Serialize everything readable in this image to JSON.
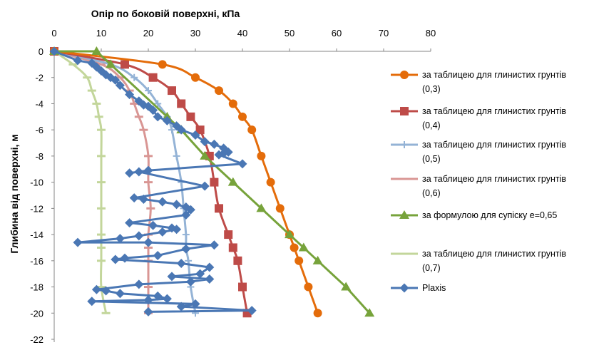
{
  "chart_data": {
    "type": "line",
    "title": "Опір по боковій поверхні, кПа",
    "xlabel": "Опір по боковій поверхні, кПа",
    "ylabel": "Глибина від поверхні, м",
    "xlim": [
      0,
      80
    ],
    "ylim": [
      -22,
      0
    ],
    "x_ticks": [
      "0",
      "10",
      "20",
      "30",
      "40",
      "50",
      "60",
      "70",
      "80"
    ],
    "y_ticks": [
      "0",
      "-2",
      "-4",
      "-6",
      "-8",
      "-10",
      "-12",
      "-14",
      "-16",
      "-18",
      "-20",
      "-22"
    ],
    "x_axis_position": "top",
    "grid": false,
    "legend_position": "right",
    "series": [
      {
        "name": "за таблицею для глинистих грунтів (0,3)",
        "color": "#E46C0A",
        "marker": "circle",
        "points": [
          [
            0,
            0
          ],
          [
            23,
            -1
          ],
          [
            30,
            -2
          ],
          [
            35,
            -3
          ],
          [
            38,
            -4
          ],
          [
            40,
            -5
          ],
          [
            42,
            -6
          ],
          [
            44,
            -8
          ],
          [
            46,
            -10
          ],
          [
            48,
            -12
          ],
          [
            50,
            -14
          ],
          [
            51,
            -15
          ],
          [
            52,
            -16
          ],
          [
            54,
            -18
          ],
          [
            56,
            -20
          ]
        ]
      },
      {
        "name": "за таблицею для глинистих грунтів (0,4)",
        "color": "#BE4B48",
        "marker": "square",
        "points": [
          [
            0,
            0
          ],
          [
            15,
            -1
          ],
          [
            21,
            -2
          ],
          [
            25,
            -3
          ],
          [
            27,
            -4
          ],
          [
            29,
            -5
          ],
          [
            31,
            -6
          ],
          [
            33,
            -8
          ],
          [
            34,
            -10
          ],
          [
            35,
            -12
          ],
          [
            37,
            -14
          ],
          [
            38,
            -15
          ],
          [
            39,
            -16
          ],
          [
            40,
            -18
          ],
          [
            41,
            -20
          ]
        ]
      },
      {
        "name": "за таблицею для глинистих грунтів (0,5)",
        "color": "#94B3D6",
        "marker": "plus",
        "points": [
          [
            0,
            0
          ],
          [
            12,
            -1
          ],
          [
            17,
            -2
          ],
          [
            20,
            -3
          ],
          [
            22,
            -4
          ],
          [
            24,
            -5
          ],
          [
            25,
            -6
          ],
          [
            26,
            -8
          ],
          [
            27,
            -10
          ],
          [
            27.5,
            -12
          ],
          [
            28,
            -14
          ],
          [
            28,
            -15
          ],
          [
            28.5,
            -16
          ],
          [
            29,
            -18
          ],
          [
            30,
            -20
          ]
        ]
      },
      {
        "name": "за таблицею для глинистих грунтів (0,6)",
        "color": "#D99694",
        "marker": "dash",
        "points": [
          [
            0,
            0
          ],
          [
            10,
            -1
          ],
          [
            14,
            -2
          ],
          [
            16,
            -3
          ],
          [
            17,
            -4
          ],
          [
            18,
            -5
          ],
          [
            19,
            -6
          ],
          [
            20,
            -8
          ],
          [
            20,
            -10
          ],
          [
            20.5,
            -12
          ],
          [
            20,
            -14
          ],
          [
            20,
            -15
          ],
          [
            20,
            -16
          ],
          [
            20,
            -18
          ],
          [
            20,
            -20
          ]
        ]
      },
      {
        "name": "за формулою для супіску e=0,65",
        "color": "#77A33B",
        "marker": "triangle",
        "points": [
          [
            0,
            0
          ],
          [
            9,
            0
          ],
          [
            12,
            -1
          ],
          [
            24,
            -5
          ],
          [
            27,
            -6
          ],
          [
            32,
            -8
          ],
          [
            38,
            -10
          ],
          [
            44,
            -12
          ],
          [
            50,
            -14
          ],
          [
            53,
            -15
          ],
          [
            56,
            -16
          ],
          [
            62,
            -18
          ],
          [
            67,
            -20
          ]
        ]
      },
      {
        "name": "за таблицею для глинистих грунтів (0,7)",
        "color": "#C3D69B",
        "marker": "dash",
        "points": [
          [
            0,
            0
          ],
          [
            4,
            -1
          ],
          [
            7,
            -2
          ],
          [
            8,
            -3
          ],
          [
            9,
            -4
          ],
          [
            9.5,
            -5
          ],
          [
            10,
            -6
          ],
          [
            10,
            -8
          ],
          [
            10,
            -10
          ],
          [
            10,
            -12
          ],
          [
            10,
            -14
          ],
          [
            10,
            -15
          ],
          [
            10,
            -16
          ],
          [
            10,
            -18
          ],
          [
            11,
            -20
          ]
        ]
      },
      {
        "name": "Plaxis",
        "color": "#4A77B4",
        "marker": "diamond",
        "points": [
          [
            0,
            0
          ],
          [
            5,
            -0.7
          ],
          [
            8,
            -0.9
          ],
          [
            9,
            -1.2
          ],
          [
            10,
            -1.5
          ],
          [
            11,
            -1.8
          ],
          [
            12,
            -2.0
          ],
          [
            13,
            -2.2
          ],
          [
            14,
            -2.6
          ],
          [
            16,
            -3.3
          ],
          [
            18,
            -3.8
          ],
          [
            19,
            -4.1
          ],
          [
            20,
            -4.2
          ],
          [
            21,
            -4.5
          ],
          [
            22,
            -5.0
          ],
          [
            24,
            -5.3
          ],
          [
            26,
            -5.7
          ],
          [
            27,
            -6.0
          ],
          [
            30,
            -6.4
          ],
          [
            32,
            -6.9
          ],
          [
            34,
            -7.1
          ],
          [
            36,
            -7.4
          ],
          [
            37,
            -7.7
          ],
          [
            36,
            -7.8
          ],
          [
            35,
            -7.9
          ],
          [
            40,
            -8.6
          ],
          [
            20,
            -9.1
          ],
          [
            16,
            -9.3
          ],
          [
            18,
            -9.2
          ],
          [
            32,
            -10.3
          ],
          [
            17,
            -11.2
          ],
          [
            19,
            -11.3
          ],
          [
            23,
            -11.5
          ],
          [
            26,
            -11.7
          ],
          [
            28,
            -11.9
          ],
          [
            29,
            -12.1
          ],
          [
            28,
            -12.5
          ],
          [
            16,
            -13.1
          ],
          [
            21,
            -13.3
          ],
          [
            25,
            -13.5
          ],
          [
            26,
            -13.6
          ],
          [
            23,
            -13.8
          ],
          [
            18,
            -14.1
          ],
          [
            14,
            -14.3
          ],
          [
            5,
            -14.6
          ],
          [
            20,
            -14.6
          ],
          [
            34,
            -14.8
          ],
          [
            28,
            -15.1
          ],
          [
            22,
            -15.6
          ],
          [
            15,
            -15.8
          ],
          [
            13,
            -15.9
          ],
          [
            27,
            -16.2
          ],
          [
            33,
            -16.5
          ],
          [
            31,
            -17.0
          ],
          [
            25,
            -17.2
          ],
          [
            33,
            -17.4
          ],
          [
            29,
            -17.6
          ],
          [
            18,
            -17.8
          ],
          [
            9,
            -18.2
          ],
          [
            11,
            -18.3
          ],
          [
            14,
            -18.5
          ],
          [
            22,
            -18.7
          ],
          [
            24,
            -18.9
          ],
          [
            20,
            -19.0
          ],
          [
            8,
            -19.1
          ],
          [
            30,
            -19.3
          ],
          [
            27,
            -19.5
          ],
          [
            42,
            -19.8
          ],
          [
            20,
            -19.9
          ]
        ]
      }
    ]
  }
}
